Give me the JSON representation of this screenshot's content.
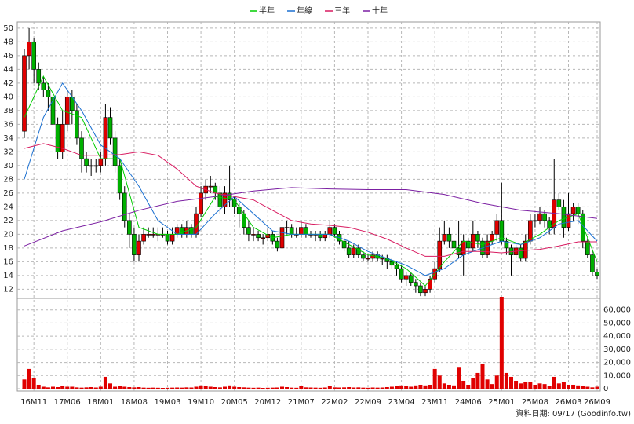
{
  "chart_data": {
    "type": "candlestick",
    "legend": "top",
    "grid": true,
    "up_color": "#e00000",
    "down_color": "#00b000",
    "categories": [
      null,
      null,
      "16M11",
      null,
      null,
      null,
      null,
      null,
      null,
      "17M06",
      null,
      null,
      null,
      null,
      null,
      null,
      "18M01",
      null,
      null,
      null,
      null,
      null,
      null,
      "18M08",
      null,
      null,
      null,
      null,
      null,
      null,
      "19M03",
      null,
      null,
      null,
      null,
      null,
      null,
      "19M10",
      null,
      null,
      null,
      null,
      null,
      null,
      "20M05",
      null,
      null,
      null,
      null,
      null,
      null,
      "20M12",
      null,
      null,
      null,
      null,
      null,
      null,
      "21M07",
      null,
      null,
      null,
      null,
      null,
      null,
      "22M02",
      null,
      null,
      null,
      null,
      null,
      null,
      "22M09",
      null,
      null,
      null,
      null,
      null,
      null,
      "23M04",
      null,
      null,
      null,
      null,
      null,
      null,
      "23M11",
      null,
      null,
      null,
      null,
      null,
      null,
      "24M06",
      null,
      null,
      null,
      null,
      null,
      null,
      "25M01",
      null,
      null,
      null,
      null,
      null,
      null,
      "25M08",
      null,
      null,
      null,
      null,
      null,
      null,
      "26M03",
      null,
      null,
      null,
      null,
      null,
      "26M09"
    ],
    "open": [
      35,
      46,
      48,
      44,
      42,
      41,
      40,
      36,
      32,
      36,
      40,
      38,
      34,
      31,
      30,
      30,
      30,
      31,
      37,
      34,
      30,
      26,
      22,
      20,
      17,
      19,
      20,
      20,
      20,
      20,
      20,
      19,
      20,
      21,
      20,
      21,
      20,
      23,
      26,
      27,
      27,
      26,
      24,
      26,
      25,
      24,
      23,
      21,
      20,
      20,
      19.5,
      19.5,
      20,
      19,
      18,
      21,
      21,
      20,
      20,
      21,
      20,
      20,
      20,
      19.5,
      20,
      21,
      20,
      19,
      18,
      17,
      18,
      17,
      16.5,
      16.5,
      17,
      16.5,
      16.5,
      16,
      15.5,
      15,
      13.5,
      14,
      13,
      12.5,
      11.5,
      12,
      13.5,
      15,
      19,
      20,
      19,
      18,
      17,
      19,
      18,
      20,
      19,
      17,
      19,
      20,
      22,
      19,
      18,
      17,
      18,
      16.5,
      19,
      22,
      22,
      23,
      22,
      21,
      25,
      24,
      21,
      23,
      24,
      23,
      19,
      17,
      14.5
    ],
    "high": [
      47,
      50,
      48.5,
      45,
      43,
      42,
      41,
      37,
      38,
      41,
      41,
      39,
      35,
      32,
      31,
      31,
      32,
      39,
      38.5,
      35,
      31,
      27,
      23,
      21,
      20,
      21,
      21,
      21,
      21,
      21,
      20.5,
      21,
      21.5,
      21.5,
      22,
      21.5,
      24,
      27,
      28,
      28.5,
      27.5,
      27,
      27,
      30,
      25.5,
      24.5,
      23.5,
      22,
      21,
      20.5,
      20,
      21,
      20.5,
      19.5,
      22,
      22,
      21.5,
      21,
      22,
      21.5,
      20.5,
      20.5,
      20.5,
      20.5,
      22,
      21.5,
      20.5,
      19.5,
      19,
      18.5,
      18.5,
      17.5,
      17,
      17.5,
      17.5,
      17,
      17,
      16.5,
      16,
      15.5,
      14.5,
      14.5,
      13.5,
      13,
      12.5,
      14,
      16,
      21,
      22,
      21,
      20,
      22,
      20,
      19.5,
      22,
      20.5,
      19.5,
      20,
      20.5,
      23,
      27.5,
      19.5,
      18.5,
      18.5,
      18.5,
      20,
      23,
      23,
      24,
      23.5,
      22.5,
      31,
      26,
      25,
      26,
      24.5,
      24.5,
      23.5,
      19.5,
      17.5,
      15
    ],
    "low": [
      34,
      44,
      42,
      41,
      40,
      38,
      34,
      31,
      31,
      35,
      36,
      33,
      29,
      29,
      28.5,
      29,
      29,
      30,
      33,
      29,
      25,
      21,
      18,
      16,
      16,
      18.5,
      19.5,
      19.5,
      19,
      19.5,
      18.5,
      18.5,
      19.5,
      19.5,
      19.5,
      19.5,
      19.5,
      22.5,
      25,
      26,
      25,
      23,
      23,
      24,
      23,
      21,
      20,
      19,
      19,
      19,
      18.5,
      19,
      18.5,
      17.5,
      17.5,
      20,
      19.5,
      19.5,
      19.5,
      19.5,
      19.5,
      19,
      19,
      19,
      19.5,
      19.5,
      18.5,
      17.5,
      16.5,
      16.5,
      16.5,
      16,
      16,
      16,
      16,
      15.5,
      15,
      15,
      14,
      13,
      12.5,
      12.5,
      11.5,
      11,
      11,
      11.5,
      13,
      14.5,
      18.5,
      18,
      17,
      16.5,
      14,
      17,
      17.5,
      18,
      16.5,
      16.5,
      18.5,
      19,
      18.5,
      17,
      14,
      16.5,
      16,
      16,
      18.5,
      21,
      21.5,
      21,
      20,
      20,
      23.5,
      19.5,
      20.5,
      22,
      21.5,
      18,
      16.5,
      14,
      13.5
    ],
    "close": [
      46,
      48,
      44,
      42,
      41,
      40,
      36,
      32,
      36,
      40,
      38,
      34,
      31,
      30,
      30,
      30,
      31,
      37,
      34,
      30,
      26,
      22,
      20,
      17,
      19,
      20,
      20,
      20,
      20,
      20,
      19,
      20,
      21,
      20,
      21,
      20,
      23,
      26,
      27,
      27,
      26,
      24,
      26,
      25,
      24,
      23,
      21,
      20,
      20,
      19.5,
      19.5,
      20,
      19,
      18,
      21,
      21,
      20,
      20,
      21,
      20,
      20,
      20,
      19.5,
      20,
      21,
      20,
      19,
      18,
      17,
      18,
      17,
      16.5,
      16.5,
      17,
      16.5,
      16.5,
      16,
      15.5,
      15,
      13.5,
      14,
      13,
      12.5,
      11.5,
      12,
      13.5,
      15,
      19,
      20,
      19,
      18,
      17,
      19,
      18,
      20,
      19,
      17,
      19,
      20,
      22,
      19,
      18,
      17,
      18,
      16.5,
      19,
      22,
      22,
      23,
      22,
      21,
      25,
      24,
      21,
      23,
      24,
      23,
      19,
      17,
      14.5,
      14
    ],
    "volume": [
      7000,
      15000,
      8000,
      3000,
      1500,
      1000,
      1500,
      1200,
      2000,
      1500,
      1500,
      1000,
      800,
      1000,
      1200,
      900,
      1500,
      9000,
      4000,
      1500,
      1800,
      1500,
      1200,
      1000,
      1200,
      800,
      700,
      800,
      700,
      600,
      700,
      800,
      900,
      800,
      1000,
      900,
      1500,
      2500,
      2000,
      1500,
      1200,
      1000,
      1500,
      2500,
      1500,
      1200,
      1000,
      800,
      700,
      800,
      600,
      700,
      800,
      900,
      1500,
      1200,
      800,
      700,
      2000,
      1000,
      900,
      800,
      700,
      900,
      1800,
      1000,
      900,
      1000,
      1200,
      900,
      1000,
      800,
      700,
      900,
      800,
      900,
      1200,
      1500,
      1800,
      2500,
      2000,
      1500,
      2500,
      3000,
      2500,
      3000,
      15000,
      10000,
      4000,
      3000,
      2500,
      16000,
      6000,
      3000,
      8000,
      12000,
      19000,
      7000,
      3500,
      10000,
      70000,
      12000,
      9000,
      6000,
      4000,
      5000,
      5000,
      3000,
      4000,
      3500,
      2000,
      9000,
      4000,
      5000,
      3000,
      3000,
      2500,
      2000,
      1500,
      1000,
      1500
    ],
    "volume_color": "#e00000",
    "series": [
      {
        "name": "半年",
        "color": "#00cc00",
        "x": [
          0,
          4,
          8,
          12,
          16,
          20,
          24,
          28,
          32,
          36,
          40,
          44,
          48,
          52,
          56,
          60,
          64,
          68,
          72,
          76,
          80,
          84,
          88,
          92,
          96,
          100,
          104,
          108,
          112,
          116,
          120
        ],
        "values": [
          37,
          43,
          38,
          37,
          31,
          31,
          21,
          20,
          20,
          21,
          25.5,
          25,
          21,
          19.5,
          20,
          20,
          20,
          18.5,
          17,
          16.5,
          15,
          12.5,
          16,
          19,
          18.5,
          19.5,
          18.5,
          20,
          22,
          23,
          16
        ]
      },
      {
        "name": "年線",
        "color": "#1a6fd0",
        "x": [
          0,
          4,
          8,
          12,
          16,
          20,
          24,
          28,
          32,
          36,
          40,
          44,
          48,
          52,
          56,
          60,
          64,
          68,
          72,
          76,
          80,
          84,
          88,
          92,
          96,
          100,
          104,
          108,
          112,
          116,
          120
        ],
        "values": [
          28,
          37,
          42,
          38,
          33,
          31,
          27,
          22,
          20,
          20,
          23,
          25.5,
          23,
          20.5,
          20,
          20,
          20,
          19,
          17.5,
          16.5,
          15.5,
          14,
          15,
          17,
          18,
          19,
          18.5,
          19.5,
          21.5,
          22,
          19
        ]
      },
      {
        "name": "三年",
        "color": "#d81b60",
        "x": [
          0,
          4,
          8,
          12,
          16,
          20,
          24,
          28,
          32,
          36,
          40,
          44,
          48,
          52,
          56,
          60,
          64,
          68,
          72,
          76,
          80,
          84,
          88,
          92,
          96,
          100,
          104,
          108,
          112,
          116,
          120
        ],
        "values": [
          32.5,
          33.2,
          32.5,
          31.5,
          31.5,
          31.6,
          32,
          31.5,
          29.5,
          27,
          26,
          25.5,
          25,
          23.5,
          22,
          21.5,
          21.3,
          21,
          20.3,
          19.3,
          18,
          16.8,
          16.8,
          17.5,
          17.5,
          17.3,
          17.6,
          17.8,
          18.3,
          18.9,
          18.9
        ]
      },
      {
        "name": "十年",
        "color": "#7b1fa2",
        "x": [
          0,
          8,
          16,
          24,
          32,
          40,
          48,
          56,
          64,
          72,
          80,
          88,
          96,
          104,
          112,
          120
        ],
        "values": [
          18.3,
          20.5,
          21.8,
          23.5,
          24.8,
          25.5,
          26.3,
          26.8,
          26.6,
          26.5,
          26.5,
          25.8,
          24.5,
          23.5,
          23,
          22.3
        ]
      }
    ],
    "ylim": [
      10.9,
      50.9
    ],
    "yticks": [
      12,
      14,
      16,
      18,
      20,
      22,
      24,
      26,
      28,
      30,
      32,
      34,
      36,
      38,
      40,
      42,
      44,
      46,
      48,
      50
    ],
    "y2lim": [
      0,
      70000
    ],
    "y2ticks": [
      0,
      {
        "value": 10000,
        "label": "10,000"
      },
      {
        "value": 20000,
        "label": "20,000"
      },
      {
        "value": 30000,
        "label": "30,000"
      },
      {
        "value": 40000,
        "label": "40,000"
      },
      {
        "value": 50000,
        "label": "50,000"
      },
      {
        "value": 60000,
        "label": "60,000"
      }
    ],
    "footer": "資料日期: 09/17 (Goodinfo.tw)"
  }
}
